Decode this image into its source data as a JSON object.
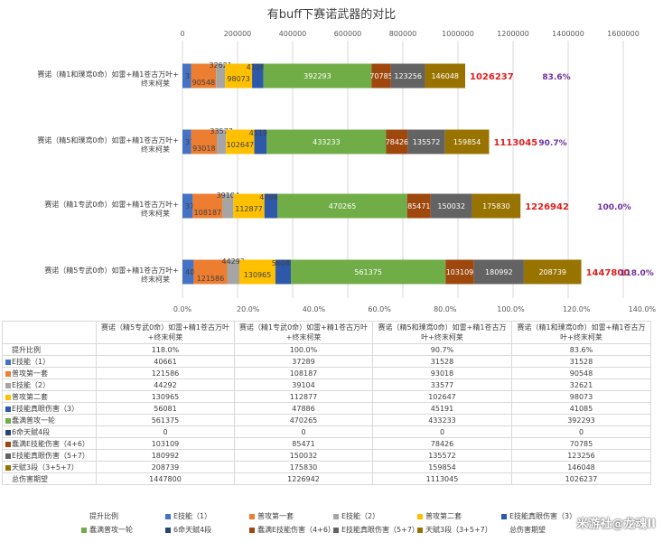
{
  "chart_data": {
    "type": "bar",
    "orientation": "horizontal",
    "stacked": true,
    "title": "有buff下赛诺武器的对比",
    "categories": [
      "赛诺（精1和璞鸢0命）如雷+精1苍古万叶+终末柯莱",
      "赛诺（精5和璞鸢0命）如雷+精1苍古万叶+终末柯莱",
      "赛诺（精1专武0命）如雷+精1苍古万叶+终末柯莱",
      "赛诺（精5专武0命）如雷+精1苍古万叶+终末柯莱"
    ],
    "series": [
      {
        "name": "E技能（1）",
        "color": "#4472c4",
        "values": [
          31528,
          31528,
          37289,
          40661
        ],
        "labels": [
          "31528",
          "31528",
          "37289",
          "40661"
        ]
      },
      {
        "name": "普攻第一套",
        "color": "#ed7d31",
        "values": [
          90548,
          93018,
          108187,
          121586
        ],
        "labels": [
          "90548",
          "93018",
          "108187",
          "121586"
        ]
      },
      {
        "name": "E技能（2）",
        "color": "#a5a5a5",
        "values": [
          32621,
          33577,
          39104,
          44292
        ],
        "labels": [
          "32621",
          "33577",
          "39104",
          "44292"
        ]
      },
      {
        "name": "普攻第二套",
        "color": "#ffc000",
        "values": [
          98073,
          102647,
          112877,
          130965
        ],
        "labels": [
          "98073",
          "102647",
          "112877",
          "130965"
        ]
      },
      {
        "name": "E技能真眼伤害（3）",
        "color": "#2e58a8",
        "values": [
          41085,
          45191,
          47886,
          56081
        ],
        "labels": [
          "41085",
          "45191",
          "47886",
          "56081"
        ]
      },
      {
        "name": "蠢满普攻一轮",
        "color": "#70ad47",
        "values": [
          392293,
          433233,
          470265,
          561375
        ],
        "labels": [
          "392293",
          "433233",
          "470265",
          "561375"
        ]
      },
      {
        "name": "6命天赋4段",
        "color": "#264478",
        "values": [
          0,
          0,
          0,
          0
        ],
        "labels": [
          "",
          "",
          "",
          ""
        ]
      },
      {
        "name": "蠢满E技能伤害（4+6）",
        "color": "#9e480e",
        "values": [
          70785,
          78426,
          85471,
          103109
        ],
        "labels": [
          "70785",
          "78426",
          "85471",
          "103109"
        ]
      },
      {
        "name": "E技能真眼伤害（5+7）",
        "color": "#636363",
        "values": [
          123256,
          135572,
          150032,
          180992
        ],
        "labels": [
          "123256",
          "135572",
          "150032",
          "180992"
        ]
      },
      {
        "name": "天赋3段（3+5+7）",
        "color": "#997300",
        "values": [
          146048,
          159854,
          175830,
          208739
        ],
        "labels": [
          "146048",
          "159854",
          "175830",
          "208739"
        ]
      }
    ],
    "totals": [
      "1026237",
      "1113045",
      "1226942",
      "1447800"
    ],
    "total_color": "#e02020",
    "ratios": [
      "83.6%",
      "90.7%",
      "100.0%",
      "118.0%"
    ],
    "ratio_color": "#7030a0",
    "top_axis": {
      "min": 0,
      "max": 1600000,
      "ticks": [
        "0",
        "200000",
        "400000",
        "600000",
        "800000",
        "1000000",
        "1200000",
        "1400000",
        "1600000"
      ]
    },
    "bottom_axis": {
      "min": 0,
      "max": 1.4,
      "ticks": [
        "0.0%",
        "20.0%",
        "40.0%",
        "60.0%",
        "80.0%",
        "100.0%",
        "120.0%",
        "140.0%"
      ]
    },
    "grid": true,
    "legend_position": "bottom"
  },
  "table": {
    "corner": "",
    "columns": [
      "赛诺（精5专武0命）如雷+精1苍古万叶+终末柯莱",
      "赛诺（精1专武0命）如雷+精1苍古万叶+终末柯莱",
      "赛诺（精5和璞鸢0命）如雷+精1苍古万叶+终末柯莱",
      "赛诺（精1和璞鸢0命）如雷+精1苍古万叶+终末柯莱"
    ],
    "rows": [
      {
        "label": "提升比例",
        "color": "",
        "values": [
          "118.0%",
          "100.0%",
          "90.7%",
          "83.6%"
        ]
      },
      {
        "label": "E技能（1）",
        "color": "#4472c4",
        "values": [
          "40661",
          "37289",
          "31528",
          "31528"
        ]
      },
      {
        "label": "普攻第一套",
        "color": "#ed7d31",
        "values": [
          "121586",
          "108187",
          "93018",
          "90548"
        ]
      },
      {
        "label": "E技能（2）",
        "color": "#a5a5a5",
        "values": [
          "44292",
          "39104",
          "33577",
          "32621"
        ]
      },
      {
        "label": "普攻第二套",
        "color": "#ffc000",
        "values": [
          "130965",
          "112877",
          "102647",
          "98073"
        ]
      },
      {
        "label": "E技能真眼伤害（3）",
        "color": "#2e58a8",
        "values": [
          "56081",
          "47886",
          "45191",
          "41085"
        ]
      },
      {
        "label": "蠢满普攻一轮",
        "color": "#70ad47",
        "values": [
          "561375",
          "470265",
          "433233",
          "392293"
        ]
      },
      {
        "label": "6命天赋4段",
        "color": "#264478",
        "values": [
          "0",
          "0",
          "0",
          "0"
        ]
      },
      {
        "label": "蠢满E技能伤害（4+6）",
        "color": "#9e480e",
        "values": [
          "103109",
          "85471",
          "78426",
          "70785"
        ]
      },
      {
        "label": "E技能真眼伤害（5+7）",
        "color": "#636363",
        "values": [
          "180992",
          "150032",
          "135572",
          "123256"
        ]
      },
      {
        "label": "天赋3段（3+5+7）",
        "color": "#997300",
        "values": [
          "208739",
          "175830",
          "159854",
          "146048"
        ]
      },
      {
        "label": "总伤害期望",
        "color": "",
        "values": [
          "1447800",
          "1226942",
          "1113045",
          "1026237"
        ]
      }
    ]
  },
  "legend": [
    {
      "label": "提升比例",
      "color": ""
    },
    {
      "label": "E技能（1）",
      "color": "#4472c4"
    },
    {
      "label": "普攻第一套",
      "color": "#ed7d31"
    },
    {
      "label": "E技能（2）",
      "color": "#a5a5a5"
    },
    {
      "label": "普攻第二套",
      "color": "#ffc000"
    },
    {
      "label": "E技能真眼伤害（3）",
      "color": "#2e58a8"
    },
    {
      "label": "蠢满普攻一轮",
      "color": "#70ad47"
    },
    {
      "label": "6命天赋4段",
      "color": "#264478"
    },
    {
      "label": "蠢满E技能伤害（4+6）",
      "color": "#9e480e"
    },
    {
      "label": "E技能真眼伤害（5+7）",
      "color": "#636363"
    },
    {
      "label": "天赋3段（3+5+7）",
      "color": "#997300"
    },
    {
      "label": "总伤害期望",
      "color": ""
    }
  ],
  "watermark": "米游社@龙魂II"
}
